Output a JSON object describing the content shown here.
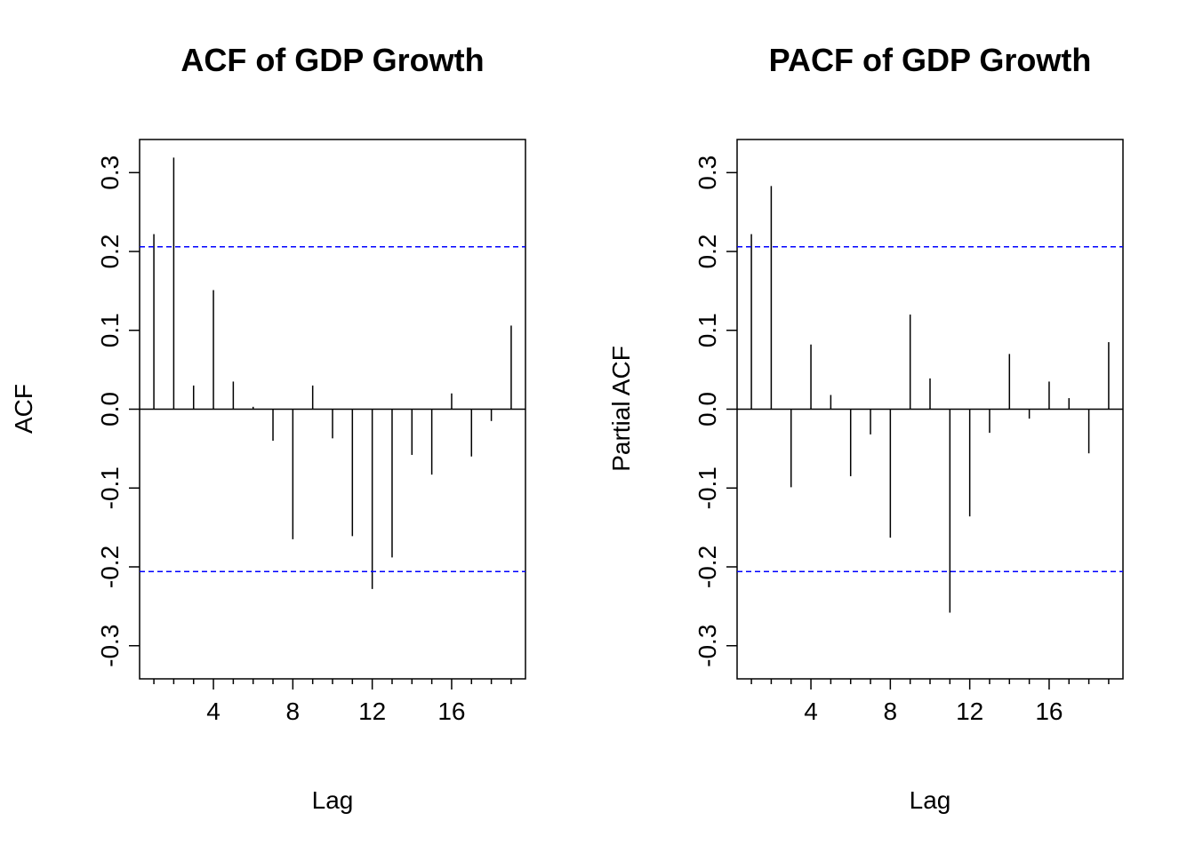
{
  "chart_data": [
    {
      "type": "bar",
      "title": "ACF of GDP Growth",
      "xlabel": "Lag",
      "ylabel": "ACF",
      "x": [
        1,
        2,
        3,
        4,
        5,
        6,
        7,
        8,
        9,
        10,
        11,
        12,
        13,
        14,
        15,
        16,
        17,
        18,
        19
      ],
      "values": [
        0.222,
        0.319,
        0.03,
        0.151,
        0.035,
        0.003,
        -0.04,
        -0.165,
        0.03,
        -0.037,
        -0.161,
        -0.228,
        -0.188,
        -0.058,
        -0.083,
        0.02,
        -0.06,
        -0.015,
        0.106
      ],
      "confidence_bound": 0.206,
      "xticks": [
        4,
        8,
        12,
        16
      ],
      "yticks": [
        -0.3,
        -0.2,
        -0.1,
        0.0,
        0.1,
        0.2,
        0.3
      ],
      "ytick_labels": [
        "-0.3",
        "-0.2",
        "-0.1",
        "0.0",
        "0.1",
        "0.2",
        "0.3"
      ],
      "xlim": [
        0.28,
        19.72
      ],
      "ylim": [
        -0.342,
        0.342
      ],
      "colors": {
        "bars": "#000000",
        "bounds": "#0000ff"
      }
    },
    {
      "type": "bar",
      "title": "PACF of GDP Growth",
      "xlabel": "Lag",
      "ylabel": "Partial ACF",
      "x": [
        1,
        2,
        3,
        4,
        5,
        6,
        7,
        8,
        9,
        10,
        11,
        12,
        13,
        14,
        15,
        16,
        17,
        18,
        19
      ],
      "values": [
        0.222,
        0.283,
        -0.099,
        0.082,
        0.018,
        -0.085,
        -0.032,
        -0.163,
        0.12,
        0.039,
        -0.258,
        -0.136,
        -0.03,
        0.07,
        -0.012,
        0.035,
        0.014,
        -0.056,
        0.085
      ],
      "confidence_bound": 0.206,
      "xticks": [
        4,
        8,
        12,
        16
      ],
      "yticks": [
        -0.3,
        -0.2,
        -0.1,
        0.0,
        0.1,
        0.2,
        0.3
      ],
      "ytick_labels": [
        "-0.3",
        "-0.2",
        "-0.1",
        "0.0",
        "0.1",
        "0.2",
        "0.3"
      ],
      "xlim": [
        0.28,
        19.72
      ],
      "ylim": [
        -0.342,
        0.342
      ],
      "colors": {
        "bars": "#000000",
        "bounds": "#0000ff"
      }
    }
  ]
}
